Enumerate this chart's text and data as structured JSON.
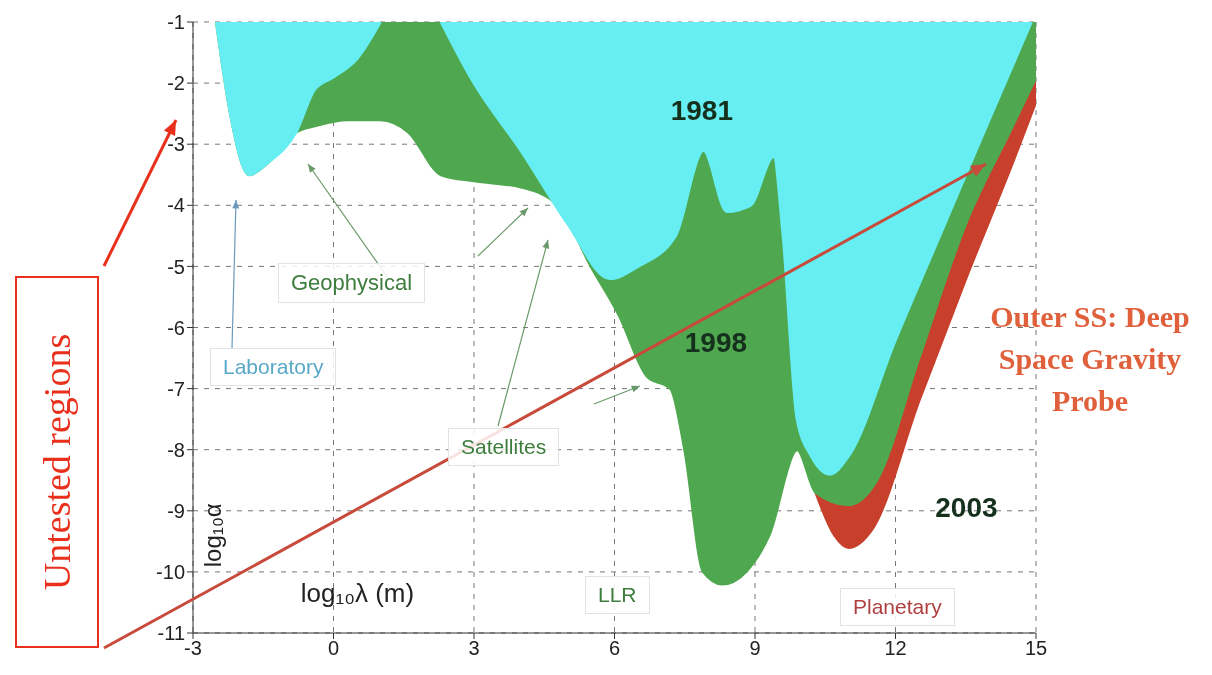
{
  "chart_data": {
    "type": "area",
    "xlabel": "log₁₀λ (m)",
    "ylabel": "log₁₀α",
    "xlim": [
      -3,
      15
    ],
    "xticks": [
      -3,
      0,
      3,
      6,
      9,
      12,
      15
    ],
    "ylim": [
      -11,
      -1
    ],
    "yticks": [
      -1,
      -2,
      -3,
      -4,
      -5,
      -6,
      -7,
      -8,
      -9,
      -10,
      -11
    ],
    "grid": true,
    "series": [
      {
        "name": "2003",
        "color": "#c8402c",
        "x": [
          10.3,
          10.7,
          11,
          11.5,
          12.5,
          13.5,
          14.5,
          15
        ],
        "values": [
          -8.7,
          -9.4,
          -9.6,
          -9.3,
          -7.2,
          -5.2,
          -3.3,
          -2.3
        ]
      },
      {
        "name": "1998",
        "color": "#4fa84f",
        "x": [
          -2.5,
          -2.2,
          -1.8,
          -1.4,
          -0.8,
          -0.4,
          0.3,
          1,
          1.6,
          2.3,
          3,
          4,
          4.8,
          5.5,
          6.1,
          6.7,
          7.2,
          7.5,
          7.9,
          8.3,
          8.8,
          9.3,
          9.9,
          10.3,
          11,
          11.6,
          12.5,
          13.5,
          14.5,
          15
        ],
        "values": [
          -1,
          -2.5,
          -3.5,
          -3.3,
          -2.8,
          -2.7,
          -2.6,
          -2.6,
          -2.8,
          -3.5,
          -3.6,
          -3.7,
          -4,
          -5,
          -5.8,
          -6.8,
          -7,
          -8,
          -10,
          -10.2,
          -10,
          -9.4,
          -8,
          -8.7,
          -8.9,
          -8.5,
          -6.5,
          -4.3,
          -2.7,
          -1.9
        ]
      },
      {
        "name": "1981",
        "color": "#66eef2",
        "x": [
          -2.5,
          -2.2,
          -1.8,
          -1.4,
          -0.8,
          -0.4,
          0,
          0.5,
          1,
          1.6,
          2.3,
          3,
          4,
          5,
          5.9,
          6.5,
          7.3,
          7.9,
          8.4,
          8.9,
          9.4,
          9.6,
          9.9,
          10.2,
          10.6,
          11,
          12,
          13,
          14,
          14.9
        ],
        "values": [
          -1,
          -2.5,
          -3.5,
          -3.3,
          -2.8,
          -2.1,
          -1.9,
          -1.6,
          -1,
          null,
          -1,
          -2,
          -3.1,
          -4.3,
          -5.2,
          -5,
          -4.5,
          -3.1,
          -4.1,
          -4,
          -3.2,
          -4.5,
          -7.5,
          -8.1,
          -8.4,
          -8.1,
          -6.2,
          -4.4,
          -2.6,
          -1
        ]
      }
    ],
    "annotations": [
      "Geophysical",
      "Laboratory",
      "Satellites",
      "LLR",
      "Planetary",
      "Outer SS: Deep Space Gravity Probe",
      "Untested regions"
    ]
  }
}
